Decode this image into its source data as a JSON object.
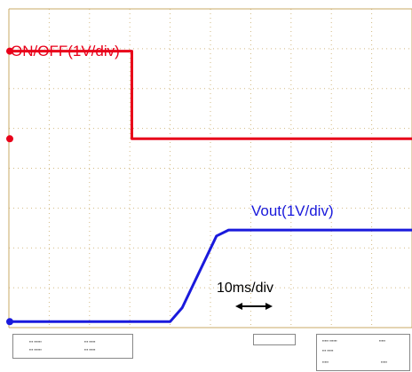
{
  "chart_data": {
    "type": "line",
    "title": "",
    "xlabel": "",
    "ylabel": "",
    "x_divisions": 10,
    "y_divisions": 8,
    "grid": true,
    "grid_color": "#c8a864",
    "x_range_div": [
      0,
      10
    ],
    "y_range_div": [
      0,
      8
    ],
    "series": [
      {
        "name": "ON/OFF(1V/div)",
        "color": "#e8001a",
        "points": [
          [
            0,
            6.94
          ],
          [
            3.05,
            6.94
          ],
          [
            3.05,
            4.74
          ],
          [
            10,
            4.74
          ]
        ]
      },
      {
        "name": "Vout(1V/div)",
        "color": "#1a1adc",
        "points": [
          [
            0,
            0.15
          ],
          [
            4.0,
            0.15
          ],
          [
            4.3,
            0.5
          ],
          [
            5.15,
            2.3
          ],
          [
            5.45,
            2.45
          ],
          [
            10,
            2.45
          ]
        ]
      }
    ],
    "timebase_label": "10ms/div"
  },
  "arrow_glyph": "⟷"
}
